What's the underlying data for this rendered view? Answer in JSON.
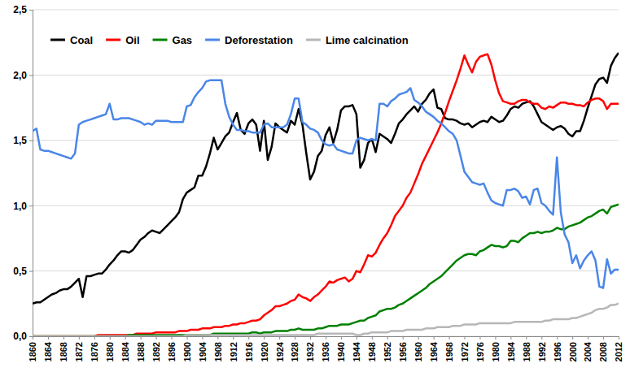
{
  "chart_data": {
    "type": "line",
    "x": [
      1860,
      1861,
      1862,
      1863,
      1864,
      1865,
      1866,
      1867,
      1868,
      1869,
      1870,
      1871,
      1872,
      1873,
      1874,
      1875,
      1876,
      1877,
      1878,
      1879,
      1880,
      1881,
      1882,
      1883,
      1884,
      1885,
      1886,
      1887,
      1888,
      1889,
      1890,
      1891,
      1892,
      1893,
      1894,
      1895,
      1896,
      1897,
      1898,
      1899,
      1900,
      1901,
      1902,
      1903,
      1904,
      1905,
      1906,
      1907,
      1908,
      1909,
      1910,
      1911,
      1912,
      1913,
      1914,
      1915,
      1916,
      1917,
      1918,
      1919,
      1920,
      1921,
      1922,
      1923,
      1924,
      1925,
      1926,
      1927,
      1928,
      1929,
      1930,
      1931,
      1932,
      1933,
      1934,
      1935,
      1936,
      1937,
      1938,
      1939,
      1940,
      1941,
      1942,
      1943,
      1944,
      1945,
      1946,
      1947,
      1948,
      1949,
      1950,
      1951,
      1952,
      1953,
      1954,
      1955,
      1956,
      1957,
      1958,
      1959,
      1960,
      1961,
      1962,
      1963,
      1964,
      1965,
      1966,
      1967,
      1968,
      1969,
      1970,
      1971,
      1972,
      1973,
      1974,
      1975,
      1976,
      1977,
      1978,
      1979,
      1980,
      1981,
      1982,
      1983,
      1984,
      1985,
      1986,
      1987,
      1988,
      1989,
      1990,
      1991,
      1992,
      1993,
      1994,
      1995,
      1996,
      1997,
      1998,
      1999,
      2000,
      2001,
      2002,
      2003,
      2004,
      2005,
      2006,
      2007,
      2008,
      2009,
      2010,
      2011,
      2012
    ],
    "series": [
      {
        "name": "Coal",
        "color": "#000000",
        "values": [
          0.25,
          0.26,
          0.26,
          0.28,
          0.3,
          0.32,
          0.33,
          0.35,
          0.36,
          0.36,
          0.38,
          0.41,
          0.44,
          0.3,
          0.46,
          0.46,
          0.47,
          0.48,
          0.48,
          0.51,
          0.55,
          0.58,
          0.62,
          0.65,
          0.65,
          0.64,
          0.66,
          0.7,
          0.74,
          0.76,
          0.79,
          0.81,
          0.8,
          0.79,
          0.82,
          0.85,
          0.88,
          0.91,
          0.95,
          1.05,
          1.1,
          1.12,
          1.14,
          1.23,
          1.23,
          1.3,
          1.4,
          1.52,
          1.43,
          1.48,
          1.53,
          1.56,
          1.64,
          1.71,
          1.58,
          1.55,
          1.63,
          1.66,
          1.62,
          1.42,
          1.65,
          1.35,
          1.45,
          1.63,
          1.6,
          1.58,
          1.56,
          1.65,
          1.62,
          1.74,
          1.62,
          1.4,
          1.2,
          1.26,
          1.38,
          1.42,
          1.54,
          1.6,
          1.48,
          1.58,
          1.73,
          1.76,
          1.76,
          1.77,
          1.7,
          1.29,
          1.35,
          1.48,
          1.51,
          1.41,
          1.55,
          1.53,
          1.51,
          1.48,
          1.55,
          1.63,
          1.66,
          1.7,
          1.73,
          1.76,
          1.72,
          1.78,
          1.81,
          1.86,
          1.89,
          1.75,
          1.74,
          1.67,
          1.66,
          1.66,
          1.65,
          1.63,
          1.62,
          1.63,
          1.6,
          1.62,
          1.64,
          1.65,
          1.64,
          1.68,
          1.66,
          1.64,
          1.65,
          1.69,
          1.74,
          1.76,
          1.75,
          1.78,
          1.79,
          1.8,
          1.76,
          1.7,
          1.64,
          1.62,
          1.6,
          1.58,
          1.6,
          1.61,
          1.59,
          1.55,
          1.53,
          1.57,
          1.57,
          1.65,
          1.75,
          1.84,
          1.93,
          1.97,
          1.98,
          1.94,
          2.07,
          2.13,
          2.17
        ]
      },
      {
        "name": "Oil",
        "color": "#ff0000",
        "values": [
          0,
          0,
          0,
          0,
          0,
          0,
          0,
          0,
          0,
          0,
          0,
          0,
          0,
          0,
          0,
          0,
          0,
          0.01,
          0.01,
          0.01,
          0.01,
          0.01,
          0.01,
          0.01,
          0.01,
          0.01,
          0.01,
          0.02,
          0.02,
          0.02,
          0.02,
          0.02,
          0.03,
          0.03,
          0.03,
          0.03,
          0.03,
          0.03,
          0.04,
          0.04,
          0.04,
          0.05,
          0.05,
          0.05,
          0.06,
          0.06,
          0.06,
          0.07,
          0.07,
          0.07,
          0.08,
          0.08,
          0.09,
          0.09,
          0.1,
          0.1,
          0.11,
          0.12,
          0.12,
          0.13,
          0.16,
          0.18,
          0.2,
          0.23,
          0.23,
          0.24,
          0.25,
          0.27,
          0.28,
          0.32,
          0.3,
          0.29,
          0.27,
          0.3,
          0.32,
          0.35,
          0.38,
          0.42,
          0.41,
          0.43,
          0.44,
          0.45,
          0.42,
          0.44,
          0.5,
          0.49,
          0.55,
          0.62,
          0.61,
          0.64,
          0.7,
          0.75,
          0.79,
          0.85,
          0.92,
          0.96,
          1.0,
          1.06,
          1.1,
          1.17,
          1.24,
          1.32,
          1.38,
          1.44,
          1.5,
          1.56,
          1.63,
          1.71,
          1.8,
          1.88,
          1.96,
          2.05,
          2.15,
          2.08,
          2.02,
          2.1,
          2.14,
          2.15,
          2.16,
          2.08,
          1.96,
          1.86,
          1.8,
          1.79,
          1.78,
          1.78,
          1.8,
          1.81,
          1.81,
          1.79,
          1.78,
          1.78,
          1.75,
          1.74,
          1.76,
          1.75,
          1.77,
          1.79,
          1.79,
          1.78,
          1.78,
          1.77,
          1.77,
          1.76,
          1.79,
          1.81,
          1.82,
          1.82,
          1.8,
          1.74,
          1.78,
          1.78,
          1.78
        ]
      },
      {
        "name": "Gas",
        "color": "#008000",
        "values": [
          0,
          0,
          0,
          0,
          0,
          0,
          0,
          0,
          0,
          0,
          0,
          0,
          0,
          0,
          0,
          0,
          0,
          0,
          0,
          0,
          0,
          0,
          0,
          0,
          0,
          0.01,
          0.01,
          0.01,
          0.01,
          0.01,
          0.01,
          0.01,
          0.01,
          0.01,
          0.01,
          0.01,
          0.01,
          0.01,
          0.01,
          0.01,
          0.01,
          0.01,
          0.01,
          0.01,
          0.01,
          0.01,
          0.01,
          0.02,
          0.02,
          0.02,
          0.02,
          0.02,
          0.02,
          0.02,
          0.02,
          0.02,
          0.02,
          0.03,
          0.03,
          0.02,
          0.03,
          0.03,
          0.03,
          0.04,
          0.04,
          0.04,
          0.04,
          0.05,
          0.05,
          0.06,
          0.05,
          0.05,
          0.05,
          0.05,
          0.06,
          0.06,
          0.07,
          0.08,
          0.08,
          0.08,
          0.09,
          0.09,
          0.09,
          0.1,
          0.11,
          0.12,
          0.12,
          0.14,
          0.15,
          0.16,
          0.19,
          0.2,
          0.21,
          0.21,
          0.22,
          0.24,
          0.25,
          0.27,
          0.29,
          0.31,
          0.33,
          0.35,
          0.37,
          0.4,
          0.42,
          0.44,
          0.46,
          0.49,
          0.52,
          0.55,
          0.58,
          0.6,
          0.62,
          0.63,
          0.63,
          0.62,
          0.65,
          0.66,
          0.68,
          0.7,
          0.69,
          0.69,
          0.68,
          0.69,
          0.73,
          0.73,
          0.72,
          0.75,
          0.77,
          0.79,
          0.79,
          0.8,
          0.79,
          0.8,
          0.8,
          0.81,
          0.83,
          0.82,
          0.82,
          0.84,
          0.85,
          0.86,
          0.87,
          0.89,
          0.91,
          0.92,
          0.94,
          0.96,
          0.97,
          0.94,
          0.99,
          1.0,
          1.01
        ]
      },
      {
        "name": "Deforestation",
        "color": "#4a86e8",
        "values": [
          1.57,
          1.59,
          1.43,
          1.42,
          1.42,
          1.41,
          1.4,
          1.39,
          1.38,
          1.37,
          1.36,
          1.4,
          1.62,
          1.64,
          1.65,
          1.66,
          1.67,
          1.68,
          1.69,
          1.7,
          1.78,
          1.66,
          1.66,
          1.67,
          1.67,
          1.67,
          1.66,
          1.65,
          1.64,
          1.62,
          1.63,
          1.62,
          1.65,
          1.65,
          1.65,
          1.65,
          1.64,
          1.64,
          1.64,
          1.64,
          1.76,
          1.77,
          1.83,
          1.87,
          1.9,
          1.95,
          1.96,
          1.96,
          1.96,
          1.96,
          1.78,
          1.68,
          1.62,
          1.58,
          1.58,
          1.57,
          1.57,
          1.56,
          1.56,
          1.56,
          1.62,
          1.63,
          1.6,
          1.6,
          1.6,
          1.6,
          1.62,
          1.7,
          1.82,
          1.82,
          1.64,
          1.62,
          1.59,
          1.58,
          1.56,
          1.5,
          1.47,
          1.46,
          1.47,
          1.43,
          1.42,
          1.41,
          1.4,
          1.4,
          1.5,
          1.52,
          1.51,
          1.5,
          1.51,
          1.5,
          1.78,
          1.78,
          1.76,
          1.8,
          1.82,
          1.85,
          1.86,
          1.87,
          1.9,
          1.81,
          1.79,
          1.76,
          1.72,
          1.7,
          1.68,
          1.65,
          1.63,
          1.6,
          1.57,
          1.55,
          1.5,
          1.38,
          1.26,
          1.22,
          1.18,
          1.17,
          1.16,
          1.17,
          1.1,
          1.04,
          1.02,
          1.01,
          1.0,
          1.12,
          1.12,
          1.13,
          1.11,
          1.06,
          1.07,
          1.01,
          1.12,
          1.13,
          1.02,
          1.0,
          0.96,
          0.93,
          1.37,
          0.95,
          0.78,
          0.72,
          0.56,
          0.62,
          0.52,
          0.58,
          0.62,
          0.65,
          0.58,
          0.38,
          0.37,
          0.59,
          0.48,
          0.51,
          0.51
        ]
      },
      {
        "name": "Lime calcination",
        "color": "#b7b7b7",
        "values": [
          0,
          0,
          0,
          0,
          0,
          0,
          0,
          0,
          0,
          0,
          0,
          0,
          0,
          0,
          0,
          0,
          0,
          0,
          0,
          0,
          0,
          0,
          0,
          0,
          0,
          0,
          0,
          0,
          0,
          0,
          0,
          0,
          0,
          0,
          0,
          0,
          0,
          0,
          0,
          0,
          0.01,
          0.01,
          0.01,
          0.01,
          0.01,
          0.01,
          0.01,
          0.01,
          0.01,
          0.01,
          0.01,
          0.01,
          0.01,
          0.01,
          0.01,
          0.01,
          0.01,
          0.01,
          0.01,
          0.01,
          0.01,
          0.01,
          0.01,
          0.01,
          0.01,
          0.01,
          0.01,
          0.01,
          0.01,
          0.01,
          0.01,
          0.01,
          0.01,
          0.01,
          0.02,
          0.02,
          0.02,
          0.02,
          0.02,
          0.02,
          0.02,
          0.02,
          0.02,
          0.02,
          0.01,
          0.01,
          0.02,
          0.02,
          0.03,
          0.03,
          0.03,
          0.03,
          0.03,
          0.04,
          0.04,
          0.04,
          0.04,
          0.05,
          0.05,
          0.05,
          0.05,
          0.05,
          0.06,
          0.06,
          0.06,
          0.07,
          0.07,
          0.07,
          0.07,
          0.08,
          0.08,
          0.08,
          0.09,
          0.09,
          0.09,
          0.09,
          0.1,
          0.1,
          0.1,
          0.1,
          0.1,
          0.1,
          0.1,
          0.1,
          0.1,
          0.11,
          0.11,
          0.11,
          0.11,
          0.11,
          0.11,
          0.11,
          0.11,
          0.12,
          0.12,
          0.13,
          0.13,
          0.13,
          0.13,
          0.13,
          0.14,
          0.14,
          0.15,
          0.16,
          0.17,
          0.18,
          0.2,
          0.21,
          0.21,
          0.22,
          0.24,
          0.24,
          0.25
        ]
      }
    ],
    "xlim": [
      1860,
      2012
    ],
    "xticks": [
      1860,
      1864,
      1868,
      1872,
      1876,
      1880,
      1884,
      1888,
      1892,
      1896,
      1900,
      1904,
      1908,
      1912,
      1916,
      1920,
      1924,
      1928,
      1932,
      1936,
      1940,
      1944,
      1948,
      1952,
      1956,
      1960,
      1964,
      1968,
      1972,
      1976,
      1980,
      1984,
      1988,
      1992,
      1996,
      2000,
      2004,
      2008,
      2012
    ],
    "ylim": [
      0,
      2.5
    ],
    "yticks": [
      {
        "value": 0,
        "label": "0,0"
      },
      {
        "value": 0.5,
        "label": "0,5"
      },
      {
        "value": 1,
        "label": "1,0"
      },
      {
        "value": 1.5,
        "label": "1,5"
      },
      {
        "value": 2,
        "label": "2,0"
      },
      {
        "value": 2.5,
        "label": "2,5"
      }
    ],
    "grid": true,
    "legend": "top-left"
  }
}
